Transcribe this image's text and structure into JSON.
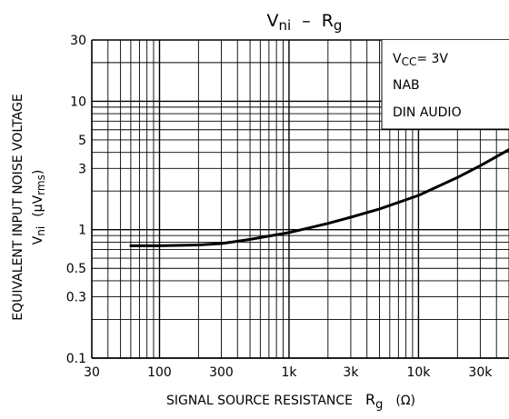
{
  "chart_data": {
    "type": "line",
    "title": {
      "main": "V",
      "sub": "ni",
      "dash": "–",
      "rg_main": "R",
      "rg_sub": "g"
    },
    "xlabel": {
      "text": "SIGNAL SOURCE RESISTANCE",
      "sym_main": "R",
      "sym_sub": "g",
      "unit": "(Ω)"
    },
    "ylabel": {
      "line1": "EQUIVALENT INPUT NOISE VOLTAGE",
      "line2_main": "V",
      "line2_sub": "ni",
      "line2_unit_open": "(μV",
      "line2_unit_sub": "rms",
      "line2_unit_close": ")"
    },
    "x_scale": "log",
    "y_scale": "log",
    "xlim": [
      30,
      50000
    ],
    "ylim": [
      0.1,
      30
    ],
    "x_ticks": [
      30,
      100,
      300,
      1000,
      3000,
      10000,
      30000
    ],
    "x_tick_labels": [
      "30",
      "100",
      "300",
      "1k",
      "3k",
      "10k",
      "30k"
    ],
    "y_ticks": [
      0.1,
      0.3,
      0.5,
      1,
      3,
      5,
      10,
      30
    ],
    "y_tick_labels": [
      "0.1",
      "0.3",
      "0.5",
      "1",
      "3",
      "5",
      "10",
      "30"
    ],
    "grid": true,
    "conditions": {
      "vcc_main": "V",
      "vcc_sub": "CC",
      "vcc_value": "= 3V",
      "line2": "NAB",
      "line3": "DIN AUDIO"
    },
    "series": [
      {
        "x": [
          60,
          100,
          200,
          300,
          500,
          1000,
          2000,
          3000,
          5000,
          10000,
          20000,
          30000,
          50000
        ],
        "y": [
          0.75,
          0.75,
          0.76,
          0.78,
          0.84,
          0.95,
          1.12,
          1.25,
          1.45,
          1.85,
          2.55,
          3.15,
          4.2
        ]
      }
    ]
  }
}
